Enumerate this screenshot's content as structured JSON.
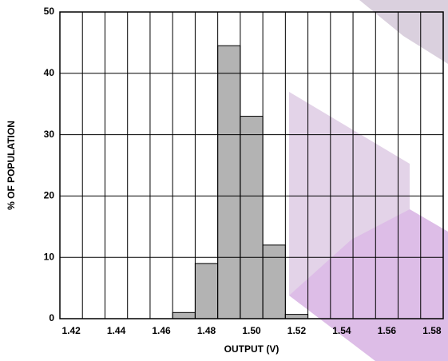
{
  "chart_data": {
    "type": "histogram",
    "bins": [
      1.465,
      1.475,
      1.485,
      1.495,
      1.505,
      1.515,
      1.525
    ],
    "values": [
      1,
      9,
      44.5,
      33,
      12,
      0.7
    ],
    "color": "#b3b3b3",
    "x_label": "OUTPUT (V)",
    "y_label": "% OF POPULATION",
    "xlim": [
      1.415,
      1.585
    ],
    "ylim": [
      0,
      50
    ],
    "xticks": [
      1.42,
      1.44,
      1.46,
      1.48,
      {
        "value": 1.5,
        "label": "1.50"
      },
      1.52,
      1.54,
      1.56,
      1.58
    ],
    "xgrid": [
      1.425,
      1.435,
      1.445,
      1.455,
      1.465,
      1.475,
      1.485,
      1.495,
      1.505,
      1.515,
      1.525,
      1.535,
      1.545,
      1.555,
      1.565,
      1.575
    ],
    "yticks": [
      0,
      10,
      20,
      30,
      40,
      50
    ],
    "grid": true
  }
}
